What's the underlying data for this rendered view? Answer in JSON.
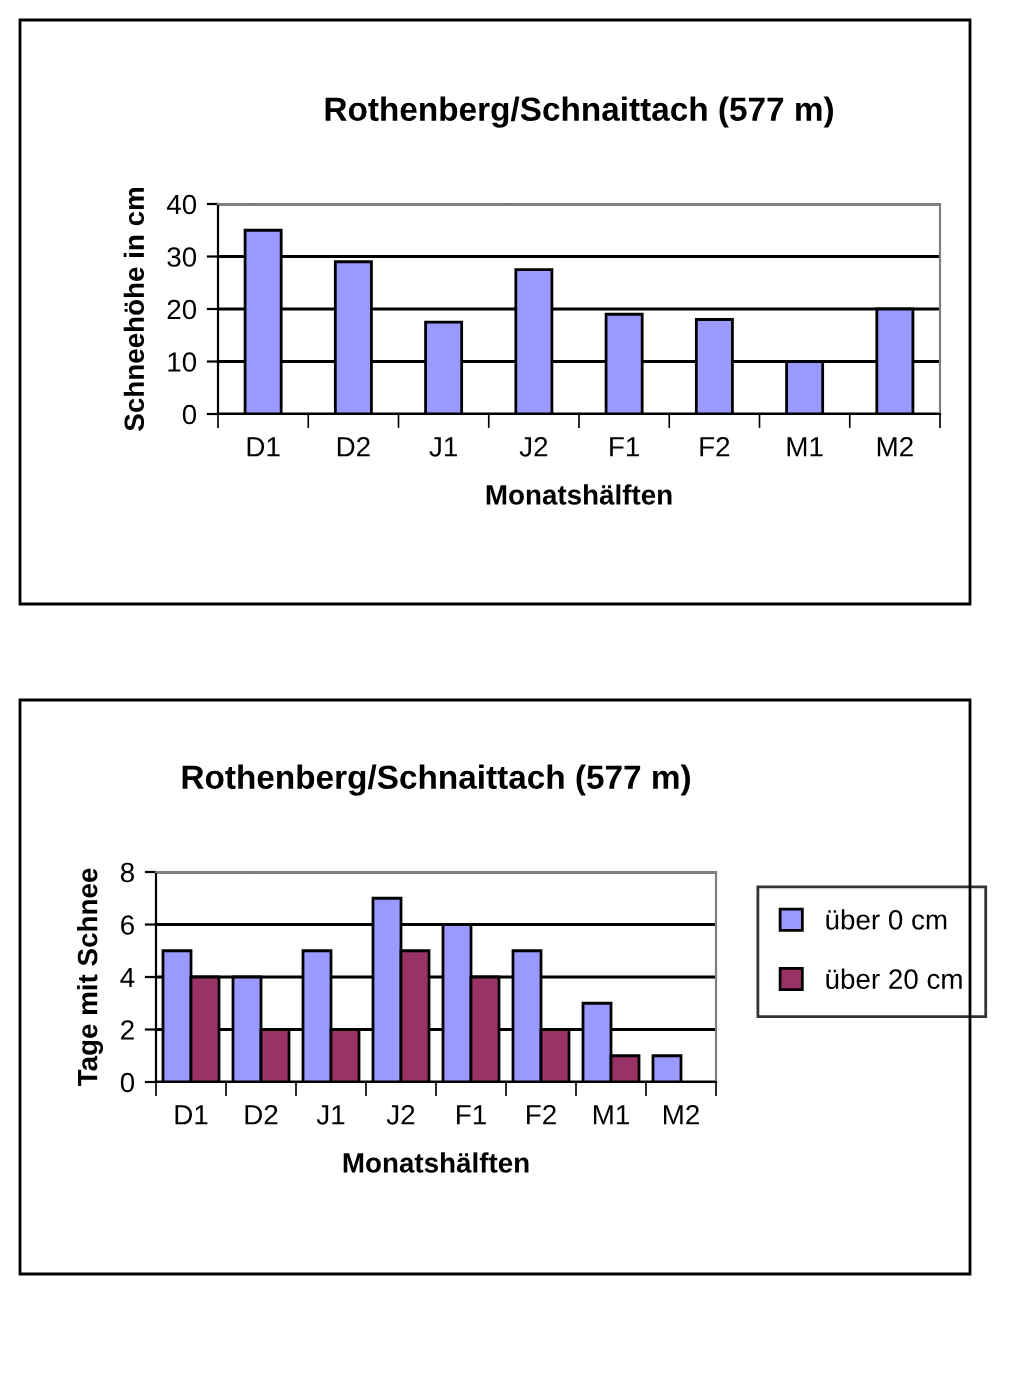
{
  "chart_data": [
    {
      "type": "bar",
      "title": "Rothenberg/Schnaittach (577 m)",
      "xlabel": "Monatshälften",
      "ylabel": "Schneehöhe in cm",
      "categories": [
        "D1",
        "D2",
        "J1",
        "J2",
        "F1",
        "F2",
        "M1",
        "M2"
      ],
      "series": [
        {
          "color": "#9999ff",
          "values": [
            35,
            29,
            17.5,
            27.5,
            19,
            18,
            10,
            20
          ]
        }
      ],
      "ylim": [
        0,
        40
      ],
      "yticks": [
        0,
        10,
        20,
        30,
        40
      ],
      "grid": "y",
      "legend": false
    },
    {
      "type": "bar",
      "title": "Rothenberg/Schnaittach (577 m)",
      "xlabel": "Monatshälften",
      "ylabel": "Tage mit Schnee",
      "categories": [
        "D1",
        "D2",
        "J1",
        "J2",
        "F1",
        "F2",
        "M1",
        "M2"
      ],
      "series": [
        {
          "name": "über 0 cm",
          "color": "#9999ff",
          "values": [
            5,
            4,
            5,
            7,
            6,
            5,
            3,
            1
          ]
        },
        {
          "name": "über 20 cm",
          "color": "#993366",
          "values": [
            4,
            2,
            2,
            5,
            4,
            2,
            1,
            null
          ]
        }
      ],
      "ylim": [
        0,
        8
      ],
      "yticks": [
        0,
        2,
        4,
        6,
        8
      ],
      "grid": "y",
      "legend": "right"
    }
  ]
}
